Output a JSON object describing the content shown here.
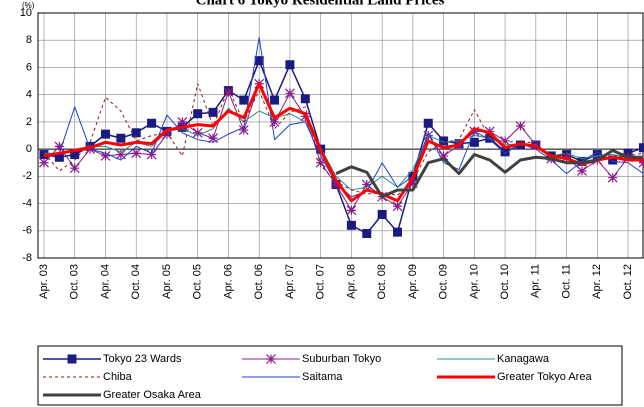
{
  "chart_data": {
    "type": "line",
    "title": "Chart 6 Tokyo Residential Land Prices",
    "y_unit": "(%)",
    "categories": [
      "Apr. 03",
      null,
      "Oct. 03",
      null,
      "Apr. 04",
      null,
      "Oct. 04",
      null,
      "Apr. 05",
      null,
      "Oct. 05",
      null,
      "Apr. 06",
      null,
      "Oct. 06",
      null,
      "Apr. 07",
      null,
      "Oct. 07",
      null,
      "Apr. 08",
      null,
      "Oct. 08",
      null,
      "Apr. 09",
      null,
      "Oct. 09",
      null,
      "Apr. 10",
      null,
      "Oct. 10",
      null,
      "Apr. 11",
      null,
      "Oct. 11",
      null,
      "Apr. 12",
      null,
      "Oct. 12",
      null
    ],
    "ylim": [
      -8,
      10
    ],
    "yticks": [
      -8,
      -6,
      -4,
      -2,
      0,
      2,
      4,
      6,
      8,
      10
    ],
    "grid": true,
    "legend": "bottom",
    "series": [
      {
        "name": "Tokyo 23 Wards",
        "color": "#1a1a80",
        "marker": "square",
        "width": 1.5,
        "values": [
          -0.4,
          -0.6,
          -0.4,
          0.2,
          1.1,
          0.8,
          1.2,
          1.9,
          1.3,
          1.6,
          2.6,
          2.7,
          4.3,
          3.6,
          6.5,
          3.6,
          6.2,
          3.7,
          0.0,
          -2.6,
          -5.6,
          -6.2,
          -4.8,
          -6.1,
          -2.0,
          1.9,
          0.6,
          0.4,
          0.5,
          0.8,
          -0.2,
          0.3,
          0.3,
          -0.5,
          -0.4,
          -0.9,
          -0.4,
          -0.8,
          -0.3,
          0.1
        ]
      },
      {
        "name": "Suburban Tokyo",
        "color": "#8b1a8b",
        "marker": "asterisk",
        "width": 1,
        "values": [
          -1.0,
          0.2,
          -1.4,
          0.0,
          -0.5,
          -0.4,
          -0.3,
          -0.4,
          1.1,
          2.0,
          1.2,
          0.8,
          4.2,
          1.4,
          4.8,
          2.0,
          4.1,
          2.4,
          -1.0,
          -2.6,
          -4.5,
          -2.6,
          -3.5,
          -4.2,
          -2.5,
          1.0,
          -0.5,
          0.3,
          1.3,
          1.3,
          0.6,
          1.7,
          0.3,
          -0.7,
          -0.6,
          -1.6,
          -0.8,
          -2.1,
          -0.6,
          -1.0
        ]
      },
      {
        "name": "Kanagawa",
        "color": "#2e8b8b",
        "width": 1,
        "values": [
          -0.3,
          -0.3,
          0.0,
          0.2,
          0.2,
          -0.2,
          0.5,
          0.2,
          1.3,
          1.5,
          1.0,
          1.5,
          3.0,
          2.0,
          2.8,
          2.3,
          2.6,
          2.0,
          0.1,
          -2.0,
          -3.0,
          -2.8,
          -2.0,
          -2.8,
          -1.5,
          1.0,
          0.5,
          0.6,
          1.0,
          0.8,
          0.3,
          0.4,
          0.3,
          -0.5,
          -0.3,
          -0.7,
          -0.5,
          -0.4,
          -0.6,
          -0.8
        ]
      },
      {
        "name": "Chiba",
        "color": "#8b1a1a",
        "dashed": true,
        "width": 1,
        "values": [
          -0.3,
          -1.6,
          -0.8,
          0.5,
          3.8,
          2.8,
          0.6,
          1.0,
          1.2,
          -0.5,
          4.8,
          1.7,
          4.4,
          2.0,
          4.3,
          1.5,
          2.7,
          3.1,
          -1.2,
          -2.4,
          -3.0,
          -3.3,
          -3.2,
          -3.4,
          -2.3,
          -0.2,
          0.5,
          0.7,
          2.9,
          0.8,
          0.5,
          0.6,
          0.4,
          -0.6,
          -0.3,
          -1.0,
          -0.7,
          -0.7,
          -0.5,
          -0.3
        ]
      },
      {
        "name": "Saitama",
        "color": "#1f3fd0",
        "width": 1,
        "values": [
          -0.5,
          -0.3,
          3.1,
          0.0,
          -0.3,
          -0.8,
          0.2,
          -0.3,
          2.5,
          1.2,
          0.7,
          0.5,
          1.1,
          1.6,
          8.2,
          0.7,
          1.8,
          2.0,
          -0.5,
          -2.5,
          -3.5,
          -3.1,
          -1.0,
          -2.8,
          -2.0,
          1.2,
          -1.0,
          -1.5,
          1.3,
          0.7,
          -0.3,
          0.4,
          0.0,
          -0.8,
          -1.8,
          -0.9,
          -0.2,
          -0.9,
          -1.0,
          -1.8
        ]
      },
      {
        "name": "Greater Tokyo Area",
        "color": "#ff0000",
        "width": 3,
        "values": [
          -0.5,
          -0.3,
          -0.1,
          0.1,
          0.5,
          0.3,
          0.5,
          0.4,
          1.4,
          1.6,
          1.8,
          1.7,
          2.8,
          2.3,
          4.8,
          2.3,
          3.0,
          2.6,
          -0.1,
          -2.3,
          -3.8,
          -3.0,
          -3.3,
          -3.8,
          -2.1,
          0.6,
          0.1,
          0.3,
          1.5,
          1.2,
          0.1,
          0.4,
          0.2,
          -0.5,
          -0.7,
          -1.1,
          -0.8,
          -0.6,
          -0.8,
          -0.8
        ]
      },
      {
        "name": "Greater Osaka Area",
        "color": "#404040",
        "width": 3,
        "values": [
          null,
          null,
          null,
          null,
          null,
          null,
          null,
          null,
          null,
          null,
          null,
          null,
          null,
          null,
          null,
          null,
          null,
          null,
          null,
          -1.8,
          -1.3,
          -1.7,
          -3.5,
          -3.0,
          -3.0,
          -1.0,
          -0.7,
          -1.8,
          -0.4,
          -0.8,
          -1.7,
          -0.8,
          -0.6,
          -0.7,
          -1.0,
          -1.0,
          -0.8,
          -0.1,
          -0.6,
          -0.6
        ]
      }
    ]
  }
}
